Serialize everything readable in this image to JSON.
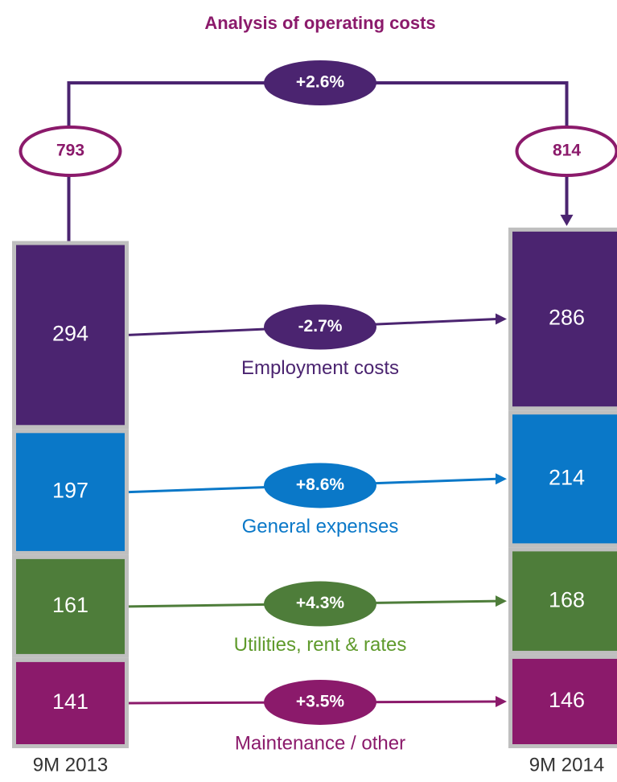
{
  "chart_data": {
    "type": "bar",
    "stacked": true,
    "title": "Analysis of operating costs",
    "categories": [
      "9M 2013",
      "9M 2014"
    ],
    "totals": [
      793,
      814
    ],
    "total_change": {
      "value": 2.6,
      "label": "+2.6%"
    },
    "series": [
      {
        "name": "Employment costs",
        "color": "#4b2470",
        "values": [
          294,
          286
        ],
        "change": {
          "value": -2.7,
          "label": "-2.7%"
        }
      },
      {
        "name": "General expenses",
        "color": "#0a78c8",
        "values": [
          197,
          214
        ],
        "change": {
          "value": 8.6,
          "label": "+8.6%"
        }
      },
      {
        "name": "Utilities, rent & rates",
        "color": "#4e7d3a",
        "name_color": "#5f9a2c",
        "values": [
          161,
          168
        ],
        "change": {
          "value": 4.3,
          "label": "+4.3%"
        }
      },
      {
        "name": "Maintenance / other",
        "color": "#8b1a6b",
        "values": [
          141,
          146
        ],
        "change": {
          "value": 3.5,
          "label": "+3.5%"
        }
      }
    ]
  }
}
